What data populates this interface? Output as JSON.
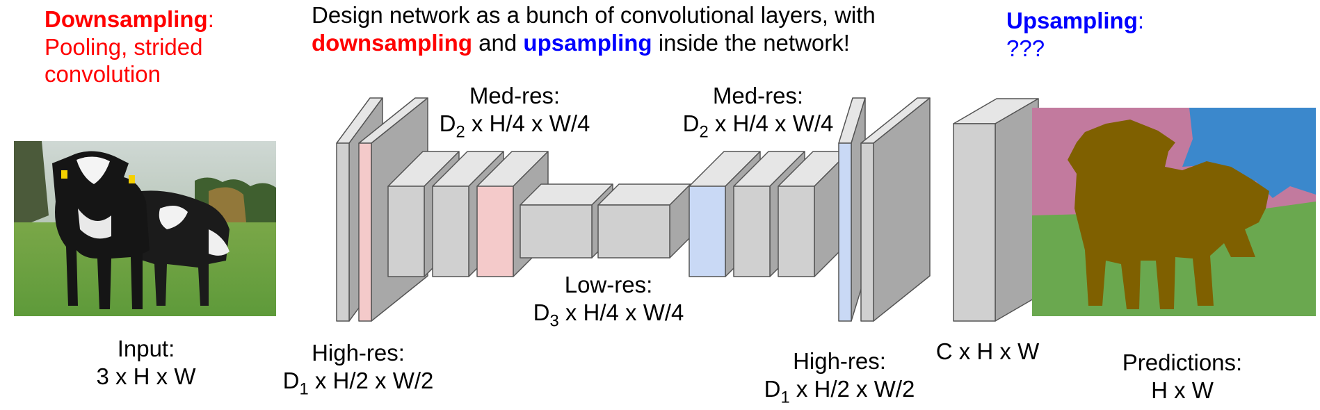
{
  "downsampling": {
    "title": "Downsampling",
    "colon": ":",
    "line1": "Pooling, strided",
    "line2": "convolution"
  },
  "upsampling": {
    "title": "Upsampling",
    "colon": ":",
    "line1": "???"
  },
  "headline": {
    "line1": "Design network as a bunch of convolutional layers, with",
    "down": "downsampling",
    "and": " and ",
    "up": "upsampling",
    "rest": " inside the network!"
  },
  "labels": {
    "input_title": "Input:",
    "input_dims": "3 x H x W",
    "highres_left_title": "High-res:",
    "highres_left_dims": "D",
    "highres_left_sub": "1",
    "highres_left_rest": " x H/2 x W/2",
    "medres_left_title": "Med-res:",
    "medres_left_dims": "D",
    "medres_left_sub": "2",
    "medres_left_rest": " x H/4 x W/4",
    "lowres_title": "Low-res:",
    "lowres_dims": "D",
    "lowres_sub": "3",
    "lowres_rest": " x H/4 x W/4",
    "medres_right_title": "Med-res:",
    "medres_right_dims": "D",
    "medres_right_sub": "2",
    "medres_right_rest": " x H/4 x W/4",
    "highres_right_title": "High-res:",
    "highres_right_dims": "D",
    "highres_right_sub": "1",
    "highres_right_rest": " x H/2 x W/2",
    "chw": "C x H x W",
    "pred_title": "Predictions:",
    "pred_dims": "H x W"
  },
  "colors": {
    "red": "#ff0000",
    "blue": "#0000ff",
    "gray_front": "#d0d0d0",
    "gray_top": "#e6e6e6",
    "gray_side": "#a8a8a8",
    "pink_front": "#f4caca",
    "blue_front": "#c9d9f5",
    "seg_sky": "#3b88cc",
    "seg_tree": "#c27a9e",
    "seg_grass": "#6aa84f",
    "seg_cow": "#7f6000"
  }
}
